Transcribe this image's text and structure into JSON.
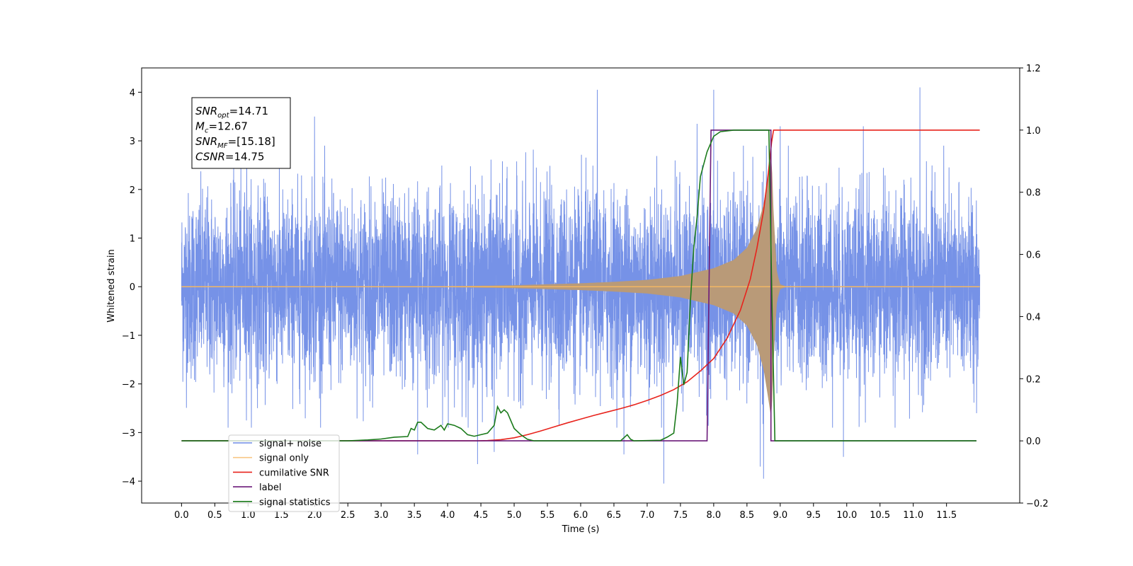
{
  "chart_data": {
    "type": "line",
    "xlabel": "Time (s)",
    "ylabel": "Whitened strain",
    "xlim": [
      -0.6,
      12.6
    ],
    "ylim": [
      -4.45,
      4.5
    ],
    "y2lim": [
      -0.2,
      1.2
    ],
    "grid": false,
    "legend_location": "lower-left",
    "x_ticks": [
      0.0,
      0.5,
      1.0,
      1.5,
      2.0,
      2.5,
      3.0,
      3.5,
      4.0,
      4.5,
      5.0,
      5.5,
      6.0,
      6.5,
      7.0,
      7.5,
      8.0,
      8.5,
      9.0,
      9.5,
      10.0,
      10.5,
      11.0,
      11.5
    ],
    "x_tick_labels": [
      "0.0",
      "0.5",
      "1.0",
      "1.5",
      "2.0",
      "2.5",
      "3.0",
      "3.5",
      "4.0",
      "4.5",
      "5.0",
      "5.5",
      "6.0",
      "6.5",
      "7.0",
      "7.5",
      "8.0",
      "8.5",
      "9.0",
      "9.5",
      "10.0",
      "10.5",
      "11.0",
      "11.5"
    ],
    "y_ticks": [
      -4,
      -3,
      -2,
      -1,
      0,
      1,
      2,
      3,
      4
    ],
    "y_tick_labels": [
      "−4",
      "−3",
      "−2",
      "−1",
      "0",
      "1",
      "2",
      "3",
      "4"
    ],
    "y2_ticks": [
      -0.2,
      0.0,
      0.2,
      0.4,
      0.6,
      0.8,
      1.0,
      1.2
    ],
    "y2_tick_labels": [
      "−0.2",
      "0.0",
      "0.2",
      "0.4",
      "0.6",
      "0.8",
      "1.0",
      "1.2"
    ],
    "annotation": [
      {
        "base": "SNR",
        "sub": "opt",
        "rest": "=14.71"
      },
      {
        "base": "M",
        "sub": "c",
        "rest": "=12.67"
      },
      {
        "base": "SNR",
        "sub": "MF",
        "rest": "=[15.18]"
      },
      {
        "base": "CSNR",
        "sub": "",
        "rest": "=14.75"
      }
    ],
    "series": [
      {
        "name": "signal+ noise",
        "color": "#6f8ce6",
        "axis": "left",
        "kind": "noise",
        "description": "random noise, typical amplitude about ±2, spikes up to about 4.1 and down to about -4",
        "x_range": [
          0.0,
          12.0
        ],
        "spikes": [
          [
            0.98,
            3.0
          ],
          [
            2.0,
            3.5
          ],
          [
            3.55,
            -3.45
          ],
          [
            4.45,
            3.75
          ],
          [
            4.45,
            -3.65
          ],
          [
            4.7,
            -3.4
          ],
          [
            6.25,
            4.05
          ],
          [
            6.65,
            -3.45
          ],
          [
            7.25,
            -4.05
          ],
          [
            7.75,
            3.35
          ],
          [
            8.0,
            4.05
          ],
          [
            8.7,
            -3.7
          ],
          [
            8.75,
            -3.95
          ],
          [
            9.0,
            3.3
          ],
          [
            9.95,
            -3.5
          ],
          [
            10.25,
            3.3
          ],
          [
            11.1,
            4.1
          ]
        ]
      },
      {
        "name": "signal only",
        "color": "#f2b764",
        "axis": "left",
        "kind": "chirp",
        "description": "chirp starting near t=2.5 with amplitude growing to about 2.7 at merger t≈8.85, then ringdown to zero",
        "envelope": [
          [
            0.0,
            0.0
          ],
          [
            2.5,
            0.005
          ],
          [
            4.0,
            0.01
          ],
          [
            5.0,
            0.03
          ],
          [
            5.5,
            0.05
          ],
          [
            6.0,
            0.07
          ],
          [
            6.5,
            0.1
          ],
          [
            7.0,
            0.14
          ],
          [
            7.5,
            0.22
          ],
          [
            8.0,
            0.38
          ],
          [
            8.3,
            0.55
          ],
          [
            8.5,
            0.8
          ],
          [
            8.65,
            1.2
          ],
          [
            8.75,
            1.7
          ],
          [
            8.82,
            2.3
          ],
          [
            8.87,
            2.75
          ],
          [
            8.9,
            1.5
          ],
          [
            8.95,
            0.3
          ],
          [
            9.0,
            0.05
          ],
          [
            9.1,
            0.0
          ],
          [
            12.0,
            0.0
          ]
        ]
      },
      {
        "name": "cumilative SNR",
        "color": "#e8231c",
        "axis": "right",
        "points": [
          [
            0.0,
            0.0
          ],
          [
            4.45,
            0.0
          ],
          [
            4.6,
            0.001
          ],
          [
            4.8,
            0.004
          ],
          [
            5.0,
            0.01
          ],
          [
            5.2,
            0.02
          ],
          [
            5.4,
            0.032
          ],
          [
            5.6,
            0.045
          ],
          [
            5.8,
            0.058
          ],
          [
            6.0,
            0.07
          ],
          [
            6.2,
            0.082
          ],
          [
            6.4,
            0.093
          ],
          [
            6.6,
            0.104
          ],
          [
            6.8,
            0.116
          ],
          [
            7.0,
            0.13
          ],
          [
            7.2,
            0.146
          ],
          [
            7.4,
            0.165
          ],
          [
            7.6,
            0.19
          ],
          [
            7.8,
            0.225
          ],
          [
            8.0,
            0.265
          ],
          [
            8.2,
            0.33
          ],
          [
            8.4,
            0.42
          ],
          [
            8.55,
            0.52
          ],
          [
            8.65,
            0.62
          ],
          [
            8.75,
            0.74
          ],
          [
            8.82,
            0.86
          ],
          [
            8.87,
            0.96
          ],
          [
            8.9,
            1.0
          ],
          [
            12.0,
            1.0
          ]
        ]
      },
      {
        "name": "label",
        "color": "#6b1a7a",
        "axis": "right",
        "points": [
          [
            0.0,
            0.0
          ],
          [
            7.9,
            0.0
          ],
          [
            7.96,
            1.0
          ],
          [
            8.86,
            1.0
          ],
          [
            8.86,
            0.0
          ],
          [
            11.95,
            0.0
          ]
        ]
      },
      {
        "name": "signal statistics",
        "color": "#1a7a1a",
        "axis": "right",
        "points": [
          [
            0.0,
            0.0
          ],
          [
            2.5,
            0.0
          ],
          [
            2.8,
            0.003
          ],
          [
            3.0,
            0.006
          ],
          [
            3.2,
            0.012
          ],
          [
            3.4,
            0.014
          ],
          [
            3.45,
            0.04
          ],
          [
            3.5,
            0.035
          ],
          [
            3.55,
            0.06
          ],
          [
            3.6,
            0.06
          ],
          [
            3.7,
            0.04
          ],
          [
            3.8,
            0.035
          ],
          [
            3.9,
            0.05
          ],
          [
            3.95,
            0.035
          ],
          [
            4.0,
            0.055
          ],
          [
            4.1,
            0.05
          ],
          [
            4.2,
            0.04
          ],
          [
            4.3,
            0.02
          ],
          [
            4.4,
            0.015
          ],
          [
            4.5,
            0.02
          ],
          [
            4.6,
            0.025
          ],
          [
            4.7,
            0.05
          ],
          [
            4.75,
            0.11
          ],
          [
            4.8,
            0.09
          ],
          [
            4.85,
            0.1
          ],
          [
            4.9,
            0.09
          ],
          [
            5.0,
            0.04
          ],
          [
            5.1,
            0.02
          ],
          [
            5.2,
            0.005
          ],
          [
            5.3,
            0.0
          ],
          [
            6.6,
            0.0
          ],
          [
            6.7,
            0.02
          ],
          [
            6.75,
            0.005
          ],
          [
            6.8,
            0.0
          ],
          [
            7.2,
            0.002
          ],
          [
            7.3,
            0.012
          ],
          [
            7.4,
            0.025
          ],
          [
            7.45,
            0.12
          ],
          [
            7.5,
            0.27
          ],
          [
            7.55,
            0.18
          ],
          [
            7.6,
            0.22
          ],
          [
            7.65,
            0.45
          ],
          [
            7.7,
            0.62
          ],
          [
            7.75,
            0.72
          ],
          [
            7.8,
            0.85
          ],
          [
            7.9,
            0.93
          ],
          [
            8.0,
            0.98
          ],
          [
            8.1,
            0.995
          ],
          [
            8.3,
            1.0
          ],
          [
            8.83,
            1.0
          ],
          [
            8.88,
            0.4
          ],
          [
            8.92,
            0.0
          ],
          [
            11.95,
            0.0
          ]
        ]
      }
    ],
    "legend": [
      {
        "label": "signal+ noise",
        "color": "#6f8ce6"
      },
      {
        "label": "signal only",
        "color": "#f8c784"
      },
      {
        "label": "cumilative SNR",
        "color": "#e8231c"
      },
      {
        "label": "label",
        "color": "#6b1a7a"
      },
      {
        "label": "signal statistics",
        "color": "#1a7a1a"
      }
    ]
  }
}
